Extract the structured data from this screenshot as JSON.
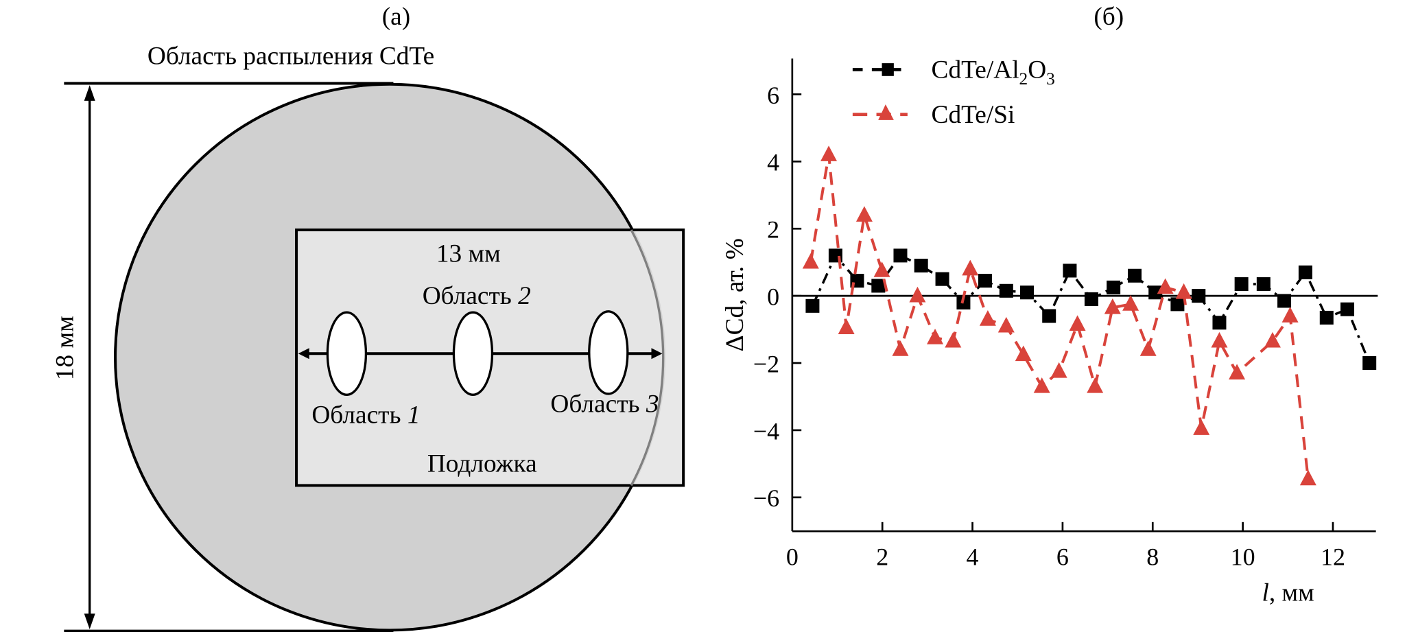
{
  "panel_a": {
    "label": "(a)",
    "sputter_title": "Область распыления CdTe",
    "diameter_label": "18 мм",
    "substrate_width_label": "13 мм",
    "substrate_label": "Подложка",
    "region_word": "Область",
    "regions": [
      {
        "word": "Область",
        "number": "1"
      },
      {
        "word": "Область",
        "number": "2"
      },
      {
        "word": "Область",
        "number": "3"
      }
    ],
    "colors": {
      "sputter_fill": "#d0d0d0",
      "substrate_fill": "#e6e6e6",
      "region_fill": "#ffffff"
    }
  },
  "panel_b": {
    "label": "(б)"
  },
  "chart_data": {
    "type": "line",
    "title": "(б)",
    "xlabel_italic": "l",
    "xlabel_rest": ", мм",
    "ylabel": "ΔCd, ат. %",
    "xlim": [
      0,
      13
    ],
    "ylim": [
      -7,
      7
    ],
    "xticks": [
      0,
      2,
      4,
      6,
      8,
      10,
      12
    ],
    "yticks": [
      -6,
      -4,
      -2,
      0,
      2,
      4,
      6
    ],
    "xtick_labels": [
      "0",
      "2",
      "4",
      "6",
      "8",
      "10",
      "12"
    ],
    "ytick_labels": [
      "−6",
      "−4",
      "−2",
      "0",
      "2",
      "4",
      "6"
    ],
    "zero_line": true,
    "grid": false,
    "legend_position": "top-left",
    "series": [
      {
        "name": "CdTe/Al2O3",
        "legend_main": "CdTe/Al",
        "legend_sub1": "2",
        "legend_mid": "O",
        "legend_sub2": "3",
        "marker": "square",
        "line": "dash-dot",
        "color": "#000000",
        "x": [
          0.45,
          0.96,
          1.44,
          1.91,
          2.4,
          2.86,
          3.33,
          3.8,
          4.28,
          4.75,
          5.21,
          5.7,
          6.16,
          6.64,
          7.13,
          7.6,
          8.06,
          8.55,
          9.02,
          9.48,
          9.97,
          10.46,
          10.92,
          11.39,
          11.86,
          12.32,
          12.81
        ],
        "y": [
          -0.3,
          1.2,
          0.45,
          0.3,
          1.2,
          0.9,
          0.5,
          -0.2,
          0.45,
          0.15,
          0.1,
          -0.6,
          0.75,
          -0.1,
          0.25,
          0.6,
          0.1,
          -0.25,
          0.0,
          -0.8,
          0.35,
          0.35,
          -0.15,
          0.7,
          -0.65,
          -0.4,
          -2.0
        ]
      },
      {
        "name": "CdTe/Si",
        "legend_main": "CdTe/Si",
        "marker": "triangle",
        "line": "dashed",
        "color": "#d9433b",
        "x": [
          0.41,
          0.81,
          1.2,
          1.6,
          1.99,
          2.4,
          2.78,
          3.17,
          3.57,
          3.95,
          4.34,
          4.75,
          5.13,
          5.54,
          5.92,
          6.33,
          6.72,
          7.11,
          7.51,
          7.9,
          8.28,
          8.69,
          9.08,
          9.48,
          9.87,
          10.66,
          11.05,
          11.45
        ],
        "y": [
          1.0,
          4.2,
          -0.95,
          2.4,
          0.75,
          -1.6,
          0.0,
          -1.25,
          -1.35,
          0.8,
          -0.7,
          -0.9,
          -1.75,
          -2.7,
          -2.25,
          -0.85,
          -2.7,
          -0.35,
          -0.25,
          -1.6,
          0.25,
          0.1,
          -3.95,
          -1.35,
          -2.3,
          -1.35,
          -0.6,
          -5.45
        ]
      }
    ]
  }
}
